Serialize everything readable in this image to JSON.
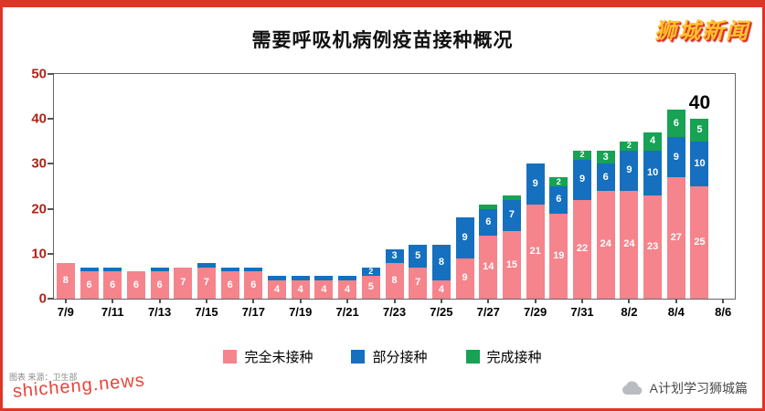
{
  "header": {
    "brand": "狮城新闻"
  },
  "chart_data": {
    "type": "bar",
    "stacked": true,
    "title": "需要呼吸机病例疫苗接种概况",
    "xlabel": "",
    "ylabel": "",
    "ylim": [
      0,
      50
    ],
    "yticks": [
      0,
      10,
      20,
      30,
      40,
      50
    ],
    "grid": false,
    "legend_position": "bottom",
    "categories": [
      "7/9",
      "7/10",
      "7/11",
      "7/12",
      "7/13",
      "7/14",
      "7/15",
      "7/16",
      "7/17",
      "7/18",
      "7/19",
      "7/20",
      "7/21",
      "7/22",
      "7/23",
      "7/24",
      "7/25",
      "7/26",
      "7/27",
      "7/28",
      "7/29",
      "7/30",
      "7/31",
      "8/1",
      "8/2",
      "8/3",
      "8/4",
      "8/5"
    ],
    "x_tick_labels": [
      "7/9",
      "7/11",
      "7/13",
      "7/15",
      "7/17",
      "7/19",
      "7/21",
      "7/23",
      "7/25",
      "7/27",
      "7/29",
      "7/31",
      "8/2",
      "8/4",
      "8/6"
    ],
    "series": [
      {
        "name": "完全未接种",
        "color": "#F5848C",
        "values": [
          8,
          6,
          6,
          6,
          6,
          7,
          7,
          6,
          6,
          4,
          4,
          4,
          4,
          5,
          8,
          7,
          4,
          9,
          14,
          15,
          21,
          19,
          22,
          24,
          24,
          23,
          27,
          25
        ]
      },
      {
        "name": "部分接种",
        "color": "#1570BF",
        "values": [
          0,
          1,
          1,
          0,
          1,
          0,
          1,
          1,
          1,
          1,
          1,
          1,
          1,
          2,
          3,
          5,
          8,
          9,
          6,
          7,
          9,
          6,
          9,
          6,
          9,
          10,
          9,
          10
        ]
      },
      {
        "name": "完成接种",
        "color": "#17A254",
        "values": [
          0,
          0,
          0,
          0,
          0,
          0,
          0,
          0,
          0,
          0,
          0,
          0,
          0,
          0,
          0,
          0,
          0,
          0,
          1,
          1,
          0,
          2,
          2,
          3,
          2,
          4,
          6,
          5
        ]
      }
    ],
    "annotation": {
      "text": "40",
      "bar_index": 27
    }
  },
  "footer": {
    "source_note": "图表 来源：卫生部",
    "watermark": "shicheng.news",
    "credit": "A计划学习狮城篇"
  },
  "colors": {
    "frame_red": "#DD3526",
    "ytick_label": "#B02318",
    "brand_gold": "#FFC22E"
  }
}
